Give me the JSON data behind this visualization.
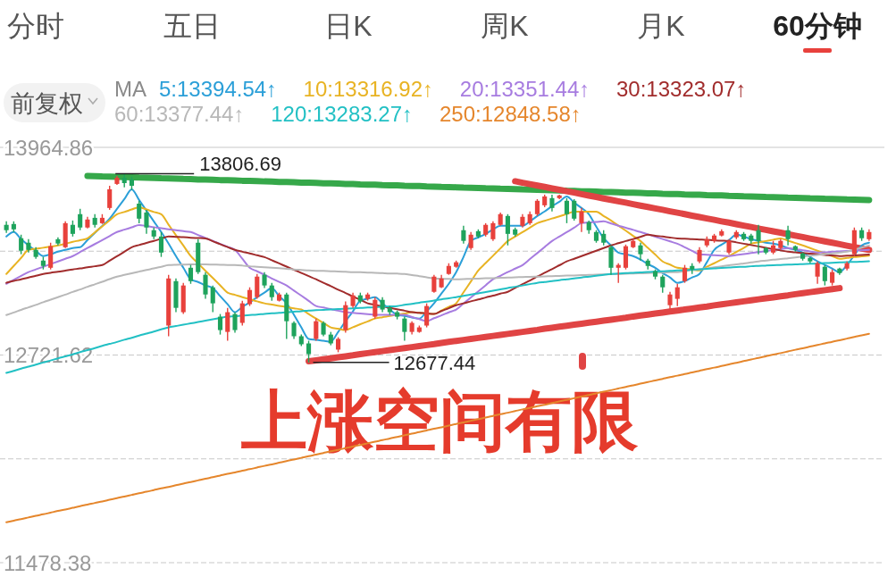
{
  "chart_data": {
    "type": "candlestick",
    "annotations": [
      "分时",
      "五日",
      "日K",
      "周K",
      "月K",
      "60分钟",
      "前复权",
      "上涨空间有限",
      {
        "text": "13806.69",
        "y": 13806.69
      },
      "12677.44"
    ],
    "legend_title": "MA",
    "legend": "top",
    "grid": "y",
    "ylim": [
      11478.38,
      13964.86
    ],
    "yticks": [
      13964.86,
      {
        "value": 13343.24,
        "label": null
      },
      12721.62,
      {
        "value": 12100,
        "label": null
      },
      11478.38
    ],
    "categories": [
      null,
      null,
      null,
      null,
      null,
      null,
      null,
      null,
      null,
      null,
      null,
      null,
      null,
      null,
      null,
      null,
      null,
      null,
      null,
      null,
      null,
      null,
      null,
      null,
      null,
      null,
      null,
      null,
      null,
      null,
      null,
      null,
      null,
      null,
      null,
      null,
      null,
      null,
      null,
      null,
      null,
      null,
      null,
      null,
      null,
      null,
      null,
      null,
      null,
      null,
      null,
      null,
      null,
      null,
      null,
      null,
      null,
      null,
      null,
      null,
      null,
      null,
      null,
      null,
      null,
      null,
      null,
      null,
      null,
      null,
      null,
      null,
      null,
      null,
      null,
      null,
      null,
      null,
      null,
      null,
      null,
      null,
      null,
      null,
      null,
      null,
      null,
      null,
      null,
      null,
      null,
      null,
      null,
      null,
      null,
      null,
      null,
      null,
      null,
      null,
      null,
      null,
      null,
      null,
      null,
      null,
      null,
      null,
      null,
      null,
      null,
      null,
      null,
      null,
      null,
      null,
      null,
      null
    ],
    "ohlc": [
      [
        13501,
        13522,
        13453,
        13469
      ],
      [
        13506,
        13522,
        13458,
        13474
      ],
      [
        13421,
        13442,
        13325,
        13346
      ],
      [
        13394,
        13415,
        13335,
        13351
      ],
      [
        13351,
        13367,
        13298,
        13309
      ],
      [
        13287,
        13309,
        13234,
        13255
      ],
      [
        13244,
        13394,
        13234,
        13373
      ],
      [
        13415,
        13426,
        13378,
        13389
      ],
      [
        13367,
        13522,
        13362,
        13511
      ],
      [
        13501,
        13527,
        13431,
        13447
      ],
      [
        13565,
        13597,
        13469,
        13485
      ],
      [
        13485,
        13549,
        13479,
        13533
      ],
      [
        13543,
        13565,
        13485,
        13501
      ],
      [
        13511,
        13565,
        13506,
        13543
      ],
      [
        13602,
        13735,
        13591,
        13714
      ],
      [
        13746,
        13794,
        13740,
        13783
      ],
      [
        13783,
        13806.69,
        13725,
        13751
      ],
      [
        13773,
        13789,
        13709,
        13735
      ],
      [
        13628,
        13645,
        13511,
        13538
      ],
      [
        13575,
        13591,
        13447,
        13485
      ],
      [
        13469,
        13485,
        13415,
        13431
      ],
      [
        13431,
        13458,
        13309,
        13335
      ],
      [
        12898,
        13202,
        12834,
        13180
      ],
      [
        13164,
        13180,
        12978,
        13004
      ],
      [
        12978,
        13154,
        12967,
        13138
      ],
      [
        13244,
        13261,
        13148,
        13164
      ],
      [
        13394,
        13415,
        13207,
        13218
      ],
      [
        13202,
        13218,
        13058,
        13084
      ],
      [
        13127,
        13138,
        12978,
        13031
      ],
      [
        12951,
        12967,
        12844,
        12871
      ],
      [
        12860,
        13004,
        12807,
        12978
      ],
      [
        12967,
        12978,
        12855,
        12871
      ],
      [
        12914,
        13047,
        12898,
        13031
      ],
      [
        13026,
        13127,
        13015,
        13111
      ],
      [
        13068,
        13207,
        13058,
        13191
      ],
      [
        13202,
        13218,
        13122,
        13138
      ],
      [
        13138,
        13154,
        13047,
        13068
      ],
      [
        13047,
        13095,
        13042,
        13084
      ],
      [
        13084,
        13095,
        12818,
        12924
      ],
      [
        12914,
        12924,
        12818,
        12834
      ],
      [
        12834,
        12844,
        12775,
        12786
      ],
      [
        12791,
        12807,
        12677.44,
        12727
      ],
      [
        12818,
        12940,
        12807,
        12924
      ],
      [
        12914,
        12924,
        12834,
        12844
      ],
      [
        12844,
        12860,
        12780,
        12791
      ],
      [
        12754,
        12828,
        12738,
        12818
      ],
      [
        12871,
        13042,
        12855,
        13020
      ],
      [
        13015,
        13095,
        13004,
        13079
      ],
      [
        13079,
        13095,
        13031,
        13042
      ],
      [
        13058,
        13095,
        13047,
        13084
      ],
      [
        12951,
        13068,
        12940,
        13052
      ],
      [
        13052,
        13068,
        12978,
        12994
      ],
      [
        13004,
        13015,
        12962,
        12978
      ],
      [
        12978,
        12988,
        12935,
        12951
      ],
      [
        12940,
        12951,
        12807,
        12860
      ],
      [
        12860,
        12924,
        12844,
        12914
      ],
      [
        12860,
        12898,
        12855,
        12887
      ],
      [
        12898,
        13031,
        12887,
        13015
      ],
      [
        13100,
        13202,
        13095,
        13191
      ],
      [
        13127,
        13202,
        13122,
        13180
      ],
      [
        13207,
        13271,
        13202,
        13255
      ],
      [
        13250,
        13287,
        13244,
        13277
      ],
      [
        13469,
        13495,
        13389,
        13405
      ],
      [
        13362,
        13458,
        13351,
        13442
      ],
      [
        13463,
        13474,
        13421,
        13431
      ],
      [
        13442,
        13511,
        13431,
        13501
      ],
      [
        13415,
        13522,
        13405,
        13511
      ],
      [
        13501,
        13575,
        13495,
        13565
      ],
      [
        13554,
        13565,
        13378,
        13447
      ],
      [
        13474,
        13485,
        13431,
        13442
      ],
      [
        13495,
        13565,
        13485,
        13549
      ],
      [
        13511,
        13581,
        13501,
        13565
      ],
      [
        13565,
        13655,
        13554,
        13645
      ],
      [
        13618,
        13682,
        13607,
        13671
      ],
      [
        13661,
        13682,
        13581,
        13602
      ],
      [
        13661,
        13682,
        13655,
        13677
      ],
      [
        13645,
        13661,
        13511,
        13565
      ],
      [
        13645,
        13655,
        13527,
        13538
      ],
      [
        13511,
        13602,
        13458,
        13581
      ],
      [
        13517,
        13527,
        13447,
        13469
      ],
      [
        13458,
        13469,
        13394,
        13405
      ],
      [
        13447,
        13469,
        13378,
        13394
      ],
      [
        13367,
        13378,
        13202,
        13244
      ],
      [
        13244,
        13271,
        13154,
        13261
      ],
      [
        13244,
        13383,
        13234,
        13373
      ],
      [
        13367,
        13415,
        13362,
        13405
      ],
      [
        13378,
        13394,
        13287,
        13325
      ],
      [
        13287,
        13298,
        13234,
        13255
      ],
      [
        13223,
        13234,
        13175,
        13191
      ],
      [
        13191,
        13202,
        13095,
        13127
      ],
      [
        13020,
        13100,
        12994,
        13084
      ],
      [
        13058,
        13148,
        13015,
        13127
      ],
      [
        13164,
        13261,
        13154,
        13244
      ],
      [
        13255,
        13271,
        13207,
        13234
      ],
      [
        13282,
        13367,
        13271,
        13351
      ],
      [
        13378,
        13431,
        13367,
        13415
      ],
      [
        13405,
        13447,
        13394,
        13437
      ],
      [
        13437,
        13474,
        13431,
        13463
      ],
      [
        13335,
        13415,
        13325,
        13405
      ],
      [
        13426,
        13469,
        13415,
        13458
      ],
      [
        13447,
        13458,
        13405,
        13415
      ],
      [
        13437,
        13447,
        13389,
        13405
      ],
      [
        13469,
        13501,
        13325,
        13405
      ],
      [
        13362,
        13367,
        13325,
        13335
      ],
      [
        13335,
        13405,
        13325,
        13378
      ],
      [
        13362,
        13415,
        13351,
        13405
      ],
      [
        13469,
        13495,
        13378,
        13415
      ],
      [
        13373,
        13378,
        13341,
        13351
      ],
      [
        13330,
        13335,
        13287,
        13298
      ],
      [
        13303,
        13309,
        13271,
        13282
      ],
      [
        13191,
        13282,
        13148,
        13271
      ],
      [
        13250,
        13261,
        13138,
        13164
      ],
      [
        13154,
        13234,
        13138,
        13218
      ],
      [
        13239,
        13244,
        13202,
        13212
      ],
      [
        13239,
        13282,
        13228,
        13271
      ],
      [
        13325,
        13485,
        13314,
        13469
      ],
      [
        13469,
        13485,
        13405,
        13421
      ],
      [
        13415,
        13474,
        13405,
        13458
      ]
    ],
    "series": [
      {
        "type": "line",
        "name": "5:13394.54↑",
        "color": "#2b9fd8",
        "values": [
          13431,
          13458,
          13415,
          13378,
          13346,
          13314,
          13325,
          13341,
          13351,
          13362,
          13367,
          13410,
          13453,
          13495,
          13538,
          13597,
          13655,
          13714,
          13650,
          13586,
          13522,
          13458,
          13389,
          13314,
          13244,
          13175,
          13159,
          13138,
          13122,
          13074,
          13026,
          12978,
          13010,
          13036,
          13068,
          13095,
          13122,
          13074,
          13031,
          12962,
          12887,
          12818,
          12812,
          12807,
          12802,
          12860,
          12924,
          12983,
          13047,
          13058,
          13068,
          13031,
          12994,
          12962,
          12956,
          12946,
          12940,
          12983,
          13031,
          13090,
          13148,
          13218,
          13309,
          13405,
          13426,
          13447,
          13474,
          13495,
          13495,
          13495,
          13495,
          13522,
          13554,
          13581,
          13613,
          13639,
          13671,
          13634,
          13602,
          13565,
          13490,
          13421,
          13378,
          13335,
          13325,
          13314,
          13293,
          13266,
          13244,
          13212,
          13186,
          13154,
          13164,
          13186,
          13207,
          13277,
          13351,
          13383,
          13410,
          13442,
          13431,
          13415,
          13405,
          13394,
          13389,
          13378,
          13362,
          13351,
          13335,
          13309,
          13282,
          13261,
          13239,
          13218,
          13261,
          13319,
          13378,
          13394.54
        ]
      },
      {
        "type": "line",
        "name": "10:13316.92↑",
        "color": "#e8b323",
        "values": [
          13207,
          13255,
          13303,
          13351,
          13358,
          13364,
          13371,
          13378,
          13388,
          13399,
          13409,
          13420,
          13456,
          13492,
          13528,
          13564,
          13578,
          13593,
          13607,
          13593,
          13578,
          13564,
          13502,
          13439,
          13377,
          13314,
          13270,
          13226,
          13183,
          13139,
          13095,
          13082,
          13068,
          13056,
          13043,
          13031,
          13024,
          13016,
          13009,
          13001,
          12994,
          12967,
          12940,
          12914,
          12887,
          12879,
          12871,
          12888,
          12906,
          12923,
          12940,
          12948,
          12955,
          12963,
          12970,
          12978,
          12974,
          12971,
          12967,
          12988,
          13010,
          13031,
          13097,
          13162,
          13228,
          13272,
          13316,
          13360,
          13404,
          13431,
          13457,
          13484,
          13511,
          13525,
          13539,
          13552,
          13566,
          13580,
          13580,
          13580,
          13580,
          13554,
          13527,
          13496,
          13466,
          13435,
          13404,
          13363,
          13323,
          13282,
          13263,
          13244,
          13239,
          13233,
          13228,
          13250,
          13271,
          13293,
          13314,
          13339,
          13363,
          13388,
          13396,
          13404,
          13412,
          13420,
          13406,
          13392,
          13378,
          13362,
          13346,
          13330,
          13314,
          13298,
          13303,
          13308,
          13312,
          13316.92
        ]
      },
      {
        "type": "line",
        "name": "20:13351.44↑",
        "color": "#a77ce0",
        "values": [
          13148,
          13171,
          13195,
          13218,
          13234,
          13250,
          13266,
          13282,
          13298,
          13314,
          13338,
          13362,
          13386,
          13410,
          13434,
          13458,
          13472,
          13486,
          13500,
          13494,
          13487,
          13481,
          13474,
          13469,
          13463,
          13458,
          13440,
          13422,
          13405,
          13387,
          13369,
          13351,
          13298,
          13244,
          13223,
          13202,
          13180,
          13159,
          13138,
          13107,
          13077,
          13046,
          13015,
          13006,
          12997,
          12987,
          12978,
          12974,
          12970,
          12966,
          12962,
          12962,
          12962,
          12962,
          12962,
          12949,
          12937,
          12924,
          12942,
          12959,
          12977,
          12994,
          13030,
          13066,
          13103,
          13139,
          13175,
          13196,
          13218,
          13239,
          13260,
          13296,
          13332,
          13368,
          13404,
          13431,
          13457,
          13484,
          13511,
          13515,
          13518,
          13522,
          13509,
          13496,
          13484,
          13471,
          13458,
          13444,
          13430,
          13416,
          13402,
          13388,
          13367,
          13345,
          13324,
          13322,
          13319,
          13317,
          13314,
          13320,
          13326,
          13332,
          13338,
          13344,
          13350,
          13356,
          13362,
          13355,
          13349,
          13342,
          13335,
          13337,
          13340,
          13342,
          13344,
          13347,
          13349,
          13351.44
        ]
      },
      {
        "type": "line",
        "name": "30:13323.07↑",
        "color": "#a12c2c",
        "values": [
          13154,
          13165,
          13175,
          13186,
          13196,
          13207,
          13214,
          13220,
          13227,
          13234,
          13240,
          13247,
          13253,
          13260,
          13287,
          13313,
          13340,
          13367,
          13380,
          13393,
          13405,
          13418,
          13431,
          13429,
          13427,
          13424,
          13422,
          13420,
          13403,
          13385,
          13368,
          13351,
          13340,
          13330,
          13319,
          13308,
          13289,
          13270,
          13251,
          13232,
          13213,
          13194,
          13175,
          13154,
          13134,
          13113,
          13093,
          13072,
          13052,
          13031,
          13022,
          13013,
          13004,
          12996,
          12987,
          12978,
          12974,
          12971,
          12967,
          12985,
          13002,
          13020,
          13031,
          13043,
          13054,
          13066,
          13077,
          13089,
          13100,
          13123,
          13146,
          13168,
          13191,
          13214,
          13236,
          13259,
          13282,
          13298,
          13314,
          13330,
          13346,
          13362,
          13378,
          13391,
          13404,
          13416,
          13429,
          13442,
          13436,
          13431,
          13425,
          13420,
          13418,
          13415,
          13413,
          13411,
          13408,
          13406,
          13404,
          13396,
          13388,
          13380,
          13372,
          13364,
          13356,
          13348,
          13340,
          13336,
          13333,
          13329,
          13325,
          13321,
          13318,
          13314,
          13316,
          13318,
          13321,
          13323.07
        ]
      },
      {
        "type": "line",
        "name": "60:13377.44↑",
        "color": "#b8b8b8",
        "values": [
          12961,
          12976,
          12992,
          13007,
          13022,
          13038,
          13053,
          13068,
          13083,
          13099,
          13114,
          13130,
          13145,
          13160,
          13176,
          13191,
          13201,
          13211,
          13221,
          13231,
          13240,
          13250,
          13260,
          13262,
          13263,
          13264,
          13264,
          13264,
          13263,
          13262,
          13261,
          13260,
          13257,
          13253,
          13250,
          13247,
          13244,
          13241,
          13238,
          13234,
          13231,
          13228,
          13226,
          13225,
          13223,
          13222,
          13220,
          13218,
          13217,
          13215,
          13214,
          13212,
          13210,
          13209,
          13207,
          13200,
          13194,
          13187,
          13180,
          13178,
          13177,
          13175,
          13176,
          13178,
          13179,
          13181,
          13182,
          13184,
          13185,
          13187,
          13188,
          13190,
          13191,
          13192,
          13194,
          13195,
          13197,
          13198,
          13200,
          13201,
          13203,
          13204,
          13205,
          13207,
          13208,
          13210,
          13211,
          13212,
          13214,
          13215,
          13217,
          13218,
          13224,
          13230,
          13235,
          13241,
          13247,
          13253,
          13259,
          13264,
          13270,
          13276,
          13282,
          13287,
          13292,
          13296,
          13301,
          13306,
          13311,
          13316,
          13321,
          13325,
          13330,
          13335,
          13340,
          13352,
          13365,
          13377.44
        ]
      },
      {
        "type": "line",
        "name": "120:13283.27↑",
        "color": "#22c0c4",
        "values": [
          12615,
          12627,
          12640,
          12652,
          12664,
          12677,
          12689,
          12702,
          12714,
          12726,
          12739,
          12751,
          12763,
          12776,
          12788,
          12800,
          12813,
          12825,
          12838,
          12850,
          12862,
          12875,
          12887,
          12895,
          12903,
          12911,
          12919,
          12927,
          12935,
          12943,
          12951,
          12954,
          12958,
          12961,
          12964,
          12968,
          12971,
          12974,
          12978,
          12981,
          12984,
          12988,
          12990,
          12992,
          12994,
          12997,
          12999,
          13001,
          13004,
          13006,
          13008,
          13010,
          13013,
          13015,
          13022,
          13028,
          13035,
          13041,
          13048,
          13055,
          13061,
          13068,
          13076,
          13084,
          13091,
          13099,
          13107,
          13115,
          13123,
          13130,
          13138,
          13146,
          13154,
          13159,
          13164,
          13170,
          13175,
          13180,
          13186,
          13191,
          13196,
          13202,
          13207,
          13209,
          13212,
          13214,
          13216,
          13219,
          13221,
          13223,
          13226,
          13228,
          13230,
          13233,
          13235,
          13238,
          13240,
          13243,
          13245,
          13248,
          13250,
          13253,
          13255,
          13257,
          13259,
          13261,
          13263,
          13264,
          13266,
          13268,
          13270,
          13272,
          13274,
          13276,
          13278,
          13279,
          13281,
          13283.27
        ]
      },
      {
        "type": "line",
        "name": "250:12848.58↑",
        "color": "#e5862c",
        "values": [
          11720,
          11730,
          11739,
          11749,
          11759,
          11768,
          11778,
          11788,
          11797,
          11807,
          11817,
          11826,
          11836,
          11845,
          11855,
          11865,
          11874,
          11884,
          11894,
          11903,
          11913,
          11923,
          11932,
          11942,
          11952,
          11961,
          11971,
          11981,
          11990,
          12000,
          12010,
          12019,
          12029,
          12038,
          12048,
          12058,
          12067,
          12077,
          12087,
          12096,
          12106,
          12116,
          12125,
          12135,
          12145,
          12154,
          12164,
          12174,
          12183,
          12193,
          12203,
          12212,
          12222,
          12231,
          12241,
          12251,
          12260,
          12270,
          12280,
          12289,
          12299,
          12309,
          12318,
          12328,
          12338,
          12347,
          12357,
          12367,
          12376,
          12386,
          12396,
          12405,
          12415,
          12424,
          12434,
          12444,
          12453,
          12463,
          12473,
          12482,
          12492,
          12502,
          12511,
          12521,
          12531,
          12540,
          12550,
          12560,
          12569,
          12579,
          12589,
          12598,
          12608,
          12617,
          12627,
          12637,
          12646,
          12656,
          12666,
          12675,
          12685,
          12695,
          12704,
          12714,
          12724,
          12733,
          12743,
          12753,
          12762,
          12772,
          12782,
          12791,
          12801,
          12810,
          12820,
          12830,
          12839,
          12848.58
        ]
      },
      {
        "type": "line",
        "color": "#36a84a",
        "values": [
          null,
          null,
          null,
          null,
          null,
          null,
          null,
          null,
          null,
          null,
          null,
          13794,
          13793,
          13791,
          13790,
          13789,
          13787,
          13786,
          13784,
          13783,
          13782,
          13780,
          13779,
          13778,
          13776,
          13775,
          13773,
          13772,
          13771,
          13769,
          13768,
          13767,
          13765,
          13764,
          13763,
          13761,
          13760,
          13758,
          13757,
          13756,
          13754,
          13753,
          13752,
          13750,
          13749,
          13748,
          13746,
          13745,
          13743,
          13742,
          13741,
          13739,
          13738,
          13737,
          13735,
          13734,
          13733,
          13731,
          13730,
          13728,
          13727,
          13726,
          13724,
          13723,
          13722,
          13720,
          13719,
          13717,
          13716,
          13715,
          13713,
          13712,
          13711,
          13709,
          13708,
          13707,
          13705,
          13704,
          13702,
          13701,
          13700,
          13698,
          13697,
          13696,
          13694,
          13693,
          13692,
          13690,
          13689,
          13687,
          13686,
          13685,
          13683,
          13682,
          13681,
          13679,
          13678,
          13677,
          13675,
          13674,
          13672,
          13671,
          13670,
          13668,
          13667,
          13666,
          13664,
          13663,
          13662,
          13660,
          13659,
          13657,
          13656,
          13655,
          13653,
          13652,
          13651,
          13650
        ]
      },
      {
        "type": "line",
        "color": "#e04444",
        "values": [
          null,
          null,
          null,
          null,
          null,
          null,
          null,
          null,
          null,
          null,
          null,
          null,
          null,
          null,
          null,
          null,
          null,
          null,
          null,
          null,
          null,
          null,
          null,
          null,
          null,
          null,
          null,
          null,
          null,
          null,
          null,
          null,
          null,
          null,
          null,
          null,
          null,
          null,
          null,
          null,
          null,
          null,
          null,
          null,
          null,
          null,
          null,
          null,
          null,
          null,
          null,
          null,
          null,
          null,
          null,
          null,
          null,
          null,
          null,
          null,
          null,
          null,
          null,
          null,
          null,
          null,
          null,
          null,
          null,
          13762,
          13753,
          13745,
          13736,
          13728,
          13719,
          13711,
          13702,
          13694,
          13685,
          13676,
          13668,
          13659,
          13651,
          13642,
          13634,
          13625,
          13616,
          13608,
          13599,
          13591,
          13582,
          13574,
          13565,
          13556,
          13548,
          13539,
          13531,
          13522,
          13514,
          13505,
          13496,
          13488,
          13479,
          13471,
          13462,
          13454,
          13445,
          13436,
          13428,
          13419,
          13411,
          13402,
          13394,
          13385,
          13376,
          13368,
          13359,
          13351
        ]
      },
      {
        "type": "line",
        "color": "#e04444",
        "values": [
          null,
          null,
          null,
          null,
          null,
          null,
          null,
          null,
          null,
          null,
          null,
          null,
          null,
          null,
          null,
          null,
          null,
          null,
          null,
          null,
          null,
          null,
          null,
          null,
          null,
          null,
          null,
          null,
          null,
          null,
          null,
          null,
          null,
          null,
          null,
          null,
          null,
          null,
          null,
          null,
          null,
          12684,
          12690,
          12696,
          12702,
          12708,
          12714,
          12720,
          12727,
          12733,
          12739,
          12745,
          12751,
          12757,
          12763,
          12769,
          12775,
          12781,
          12787,
          12794,
          12800,
          12806,
          12812,
          12818,
          12824,
          12830,
          12836,
          12842,
          12848,
          12854,
          12860,
          12866,
          12872,
          12879,
          12885,
          12891,
          12897,
          12903,
          12909,
          12915,
          12921,
          12927,
          12933,
          12939,
          12945,
          12952,
          12958,
          12964,
          12970,
          12976,
          12982,
          12988,
          12994,
          13000,
          13006,
          13012,
          13019,
          13025,
          13031,
          13037,
          13043,
          13049,
          13055,
          13061,
          13067,
          13073,
          13079,
          13086,
          13092,
          13098,
          13104,
          13110,
          13116,
          13122,
          null,
          null,
          null,
          null
        ]
      }
    ]
  }
}
